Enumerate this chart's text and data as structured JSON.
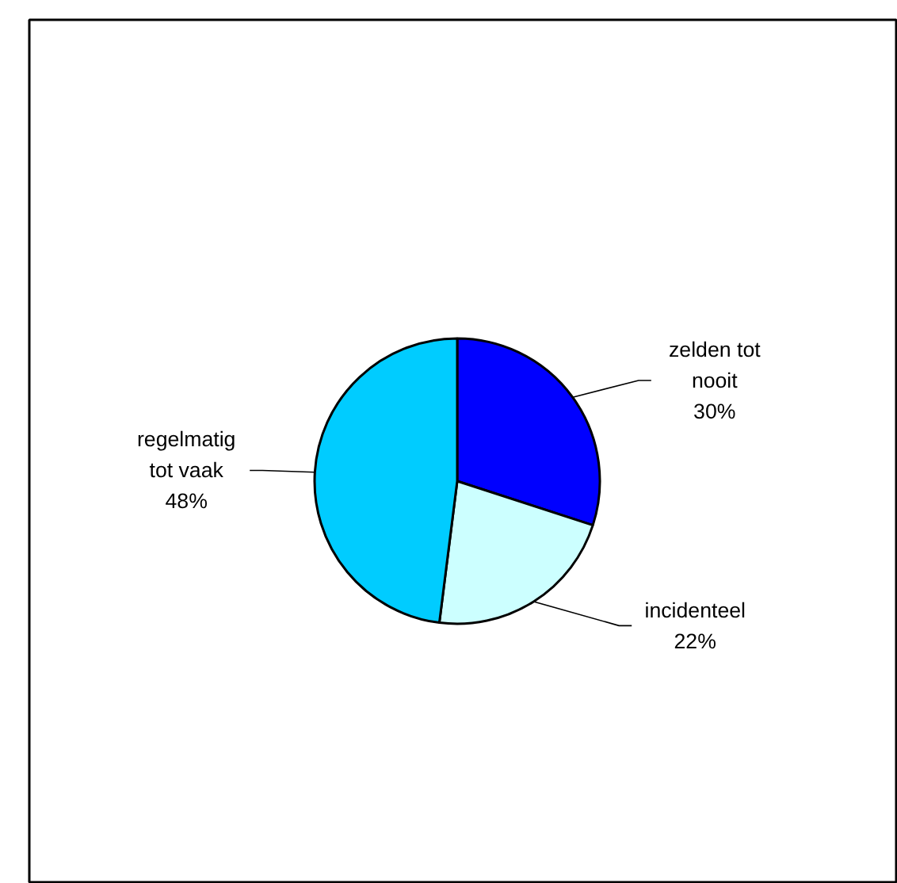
{
  "chart_data": {
    "type": "pie",
    "categories": [
      "zelden tot nooit",
      "incidenteel",
      "regelmatig tot vaak"
    ],
    "values": [
      30,
      22,
      48
    ],
    "value_labels": [
      "30%",
      "22%",
      "48%"
    ],
    "colors": [
      "#0000ff",
      "#ccffff",
      "#00ccff"
    ]
  }
}
